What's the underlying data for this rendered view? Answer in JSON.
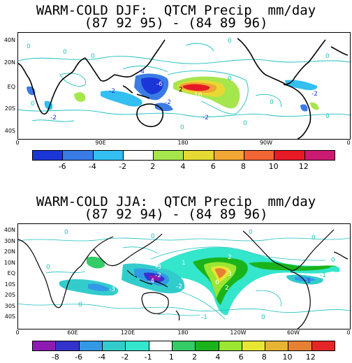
{
  "panel1": {
    "title_line1": "WARM-COLD DJF:  QTCM Precip  mm/day",
    "title_line2": "(87 92 95) - (84 89 96)",
    "lat_labels": [
      "40N",
      "20N",
      "EQ",
      "20S",
      "40S"
    ],
    "lon_labels": [
      "0",
      "90E",
      "180",
      "90W",
      "0"
    ],
    "colorbar_colors": [
      "#1a36d9",
      "#3a7be6",
      "#33bff2",
      "#ffffff",
      "#a6e64d",
      "#e6d933",
      "#f2a633",
      "#f26633",
      "#e61a26",
      "#cc1a73"
    ],
    "colorbar_labels": [
      "-6",
      "-4",
      "-2",
      "2",
      "4",
      "6",
      "8",
      "10",
      "12"
    ],
    "contour_labels": [
      "0",
      "0",
      "0",
      "0",
      "0",
      "0",
      "0",
      "0",
      "0",
      "-4",
      "-6",
      "-2",
      "-2",
      "-2",
      "-2",
      "-2",
      "10",
      "2",
      "0",
      "0"
    ]
  },
  "panel2": {
    "title_line1": "WARM-COLD JJA:  QTCM Precip  mm/day",
    "title_line2": "(87 92 94) - (84 89 96)",
    "lat_labels": [
      "40N",
      "30N",
      "20N",
      "10N",
      "EQ",
      "10S",
      "20S",
      "30S",
      "40S"
    ],
    "lon_labels": [
      "0",
      "60E",
      "120E",
      "180",
      "120W",
      "60W",
      "0"
    ],
    "colorbar_colors": [
      "#8c1ab3",
      "#3333cc",
      "#3399e6",
      "#33cccc",
      "#33e6cc",
      "#ffffff",
      "#33cc66",
      "#1ab31a",
      "#99e633",
      "#e6e633",
      "#e6b333",
      "#e68033",
      "#e62626"
    ],
    "colorbar_labels": [
      "-8",
      "-6",
      "-4",
      "-2",
      "-1",
      "1",
      "2",
      "4",
      "6",
      "8",
      "10",
      "12"
    ],
    "contour_labels": [
      "0",
      "0",
      "0",
      "0",
      "0",
      "0",
      "0",
      "-1",
      "-4",
      "-2",
      "-3",
      "-2",
      "-3",
      "1",
      "1",
      "2",
      "6",
      "3",
      "2",
      "2",
      "-2",
      "-1",
      "-1",
      "-1",
      "0"
    ]
  }
}
